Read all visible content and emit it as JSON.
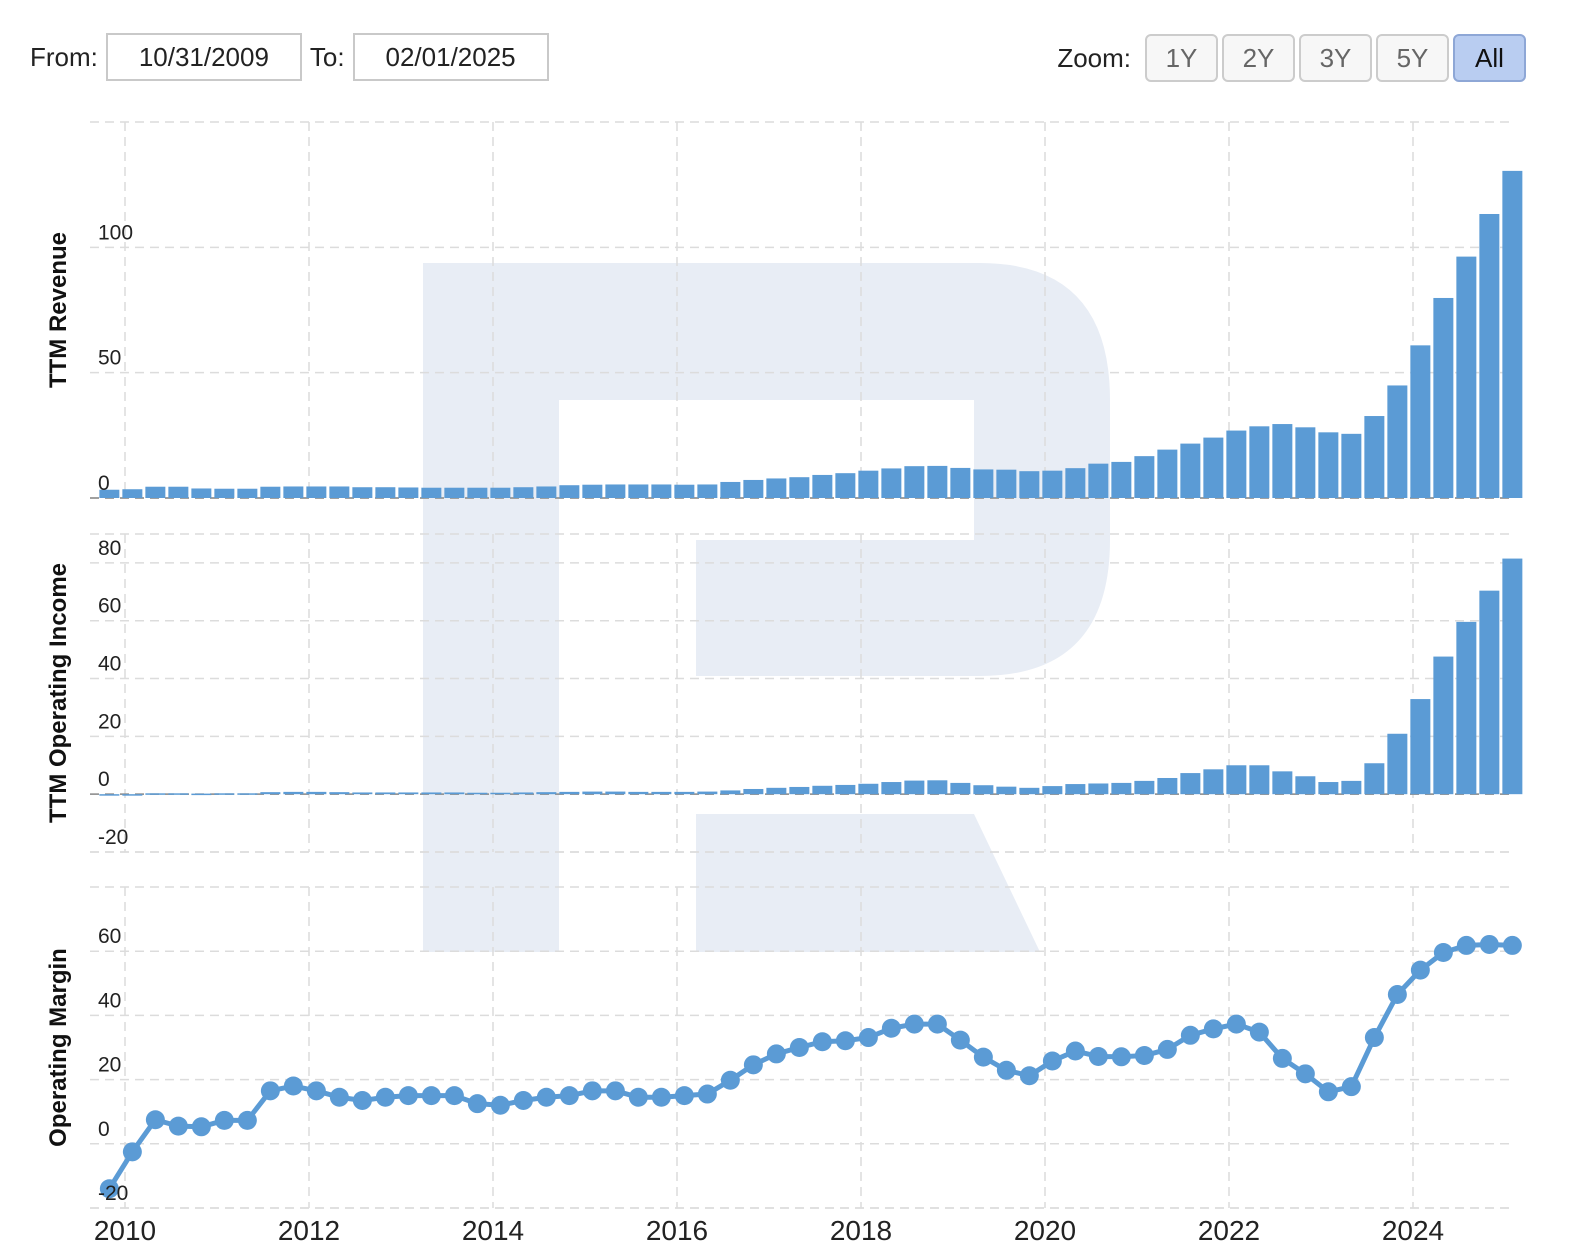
{
  "range": {
    "from_label": "From:",
    "from_value": "10/31/2009",
    "to_label": "To:",
    "to_value": "02/01/2025"
  },
  "zoom": {
    "label": "Zoom:",
    "buttons": [
      "1Y",
      "2Y",
      "3Y",
      "5Y",
      "All"
    ],
    "active": "All"
  },
  "colors": {
    "series": "#5b9bd5",
    "watermark": "#e8edf5",
    "grid": "#dcdcdc"
  },
  "chart_data": [
    {
      "type": "bar",
      "ylabel": "TTM Revenue",
      "ylim": [
        0,
        150
      ],
      "yticks": [
        0,
        50,
        100
      ],
      "x": [
        2009.83,
        2010.08,
        2010.33,
        2010.58,
        2010.83,
        2011.08,
        2011.33,
        2011.58,
        2011.83,
        2012.08,
        2012.33,
        2012.58,
        2012.83,
        2013.08,
        2013.33,
        2013.58,
        2013.83,
        2014.08,
        2014.33,
        2014.58,
        2014.83,
        2015.08,
        2015.33,
        2015.58,
        2015.83,
        2016.08,
        2016.33,
        2016.58,
        2016.83,
        2017.08,
        2017.33,
        2017.58,
        2017.83,
        2018.08,
        2018.33,
        2018.58,
        2018.83,
        2019.08,
        2019.33,
        2019.58,
        2019.83,
        2020.08,
        2020.33,
        2020.58,
        2020.83,
        2021.08,
        2021.33,
        2021.58,
        2021.83,
        2022.08,
        2022.33,
        2022.58,
        2022.83,
        2023.08,
        2023.33,
        2023.58,
        2023.83,
        2024.08,
        2024.33,
        2024.58,
        2024.83,
        2025.08
      ],
      "values": [
        3.3,
        3.5,
        4.5,
        4.5,
        3.8,
        3.7,
        3.7,
        4.5,
        4.6,
        4.6,
        4.6,
        4.3,
        4.3,
        4.2,
        4.1,
        4.1,
        4.1,
        4.1,
        4.3,
        4.6,
        5.1,
        5.3,
        5.4,
        5.4,
        5.4,
        5.3,
        5.4,
        6.4,
        7.2,
        7.8,
        8.3,
        9.2,
        9.9,
        10.9,
        11.8,
        12.7,
        12.8,
        12.0,
        11.4,
        11.3,
        10.7,
        10.9,
        11.9,
        13.7,
        14.4,
        16.7,
        19.3,
        21.7,
        24.1,
        26.9,
        28.6,
        29.5,
        28.2,
        26.2,
        25.6,
        32.7,
        44.9,
        60.9,
        79.8,
        96.3,
        113.3,
        130.5
      ]
    },
    {
      "type": "bar",
      "ylabel": "TTM Operating Income",
      "ylim": [
        -20,
        90
      ],
      "yticks": [
        -20,
        0,
        20,
        40,
        60,
        80
      ],
      "x": [
        2009.83,
        2010.08,
        2010.33,
        2010.58,
        2010.83,
        2011.08,
        2011.33,
        2011.58,
        2011.83,
        2012.08,
        2012.33,
        2012.58,
        2012.83,
        2013.08,
        2013.33,
        2013.58,
        2013.83,
        2014.08,
        2014.33,
        2014.58,
        2014.83,
        2015.08,
        2015.33,
        2015.58,
        2015.83,
        2016.08,
        2016.33,
        2016.58,
        2016.83,
        2017.08,
        2017.33,
        2017.58,
        2017.83,
        2018.08,
        2018.33,
        2018.58,
        2018.83,
        2019.08,
        2019.33,
        2019.58,
        2019.83,
        2020.08,
        2020.33,
        2020.58,
        2020.83,
        2021.08,
        2021.33,
        2021.58,
        2021.83,
        2022.08,
        2022.33,
        2022.58,
        2022.83,
        2023.08,
        2023.33,
        2023.58,
        2023.83,
        2024.08,
        2024.33,
        2024.58,
        2024.83,
        2025.08
      ],
      "values": [
        -0.5,
        -0.1,
        0.3,
        0.3,
        0.2,
        0.3,
        0.3,
        0.7,
        0.8,
        0.8,
        0.7,
        0.6,
        0.6,
        0.6,
        0.6,
        0.6,
        0.5,
        0.5,
        0.6,
        0.7,
        0.8,
        0.9,
        0.9,
        0.8,
        0.8,
        0.8,
        0.9,
        1.3,
        1.8,
        2.2,
        2.5,
        2.9,
        3.2,
        3.6,
        4.2,
        4.7,
        4.8,
        3.9,
        3.1,
        2.6,
        2.2,
        2.8,
        3.5,
        3.7,
        3.9,
        4.6,
        5.6,
        7.3,
        8.6,
        10.0,
        10.0,
        7.9,
        6.2,
        4.2,
        4.6,
        10.7,
        20.9,
        32.9,
        47.6,
        59.6,
        70.4,
        81.5
      ]
    },
    {
      "type": "line",
      "ylabel": "Operating Margin",
      "ylim": [
        -20,
        80
      ],
      "yticks": [
        -20,
        0,
        20,
        40,
        60
      ],
      "xticks": [
        2010,
        2012,
        2014,
        2016,
        2018,
        2020,
        2022,
        2024
      ],
      "x": [
        2009.83,
        2010.08,
        2010.33,
        2010.58,
        2010.83,
        2011.08,
        2011.33,
        2011.58,
        2011.83,
        2012.08,
        2012.33,
        2012.58,
        2012.83,
        2013.08,
        2013.33,
        2013.58,
        2013.83,
        2014.08,
        2014.33,
        2014.58,
        2014.83,
        2015.08,
        2015.33,
        2015.58,
        2015.83,
        2016.08,
        2016.33,
        2016.58,
        2016.83,
        2017.08,
        2017.33,
        2017.58,
        2017.83,
        2018.08,
        2018.33,
        2018.58,
        2018.83,
        2019.08,
        2019.33,
        2019.58,
        2019.83,
        2020.08,
        2020.33,
        2020.58,
        2020.83,
        2021.08,
        2021.33,
        2021.58,
        2021.83,
        2022.08,
        2022.33,
        2022.58,
        2022.83,
        2023.08,
        2023.33,
        2023.58,
        2023.83,
        2024.08,
        2024.33,
        2024.58,
        2024.83,
        2025.08
      ],
      "values": [
        -14,
        -2.5,
        7.5,
        5.5,
        5.3,
        7.3,
        7.3,
        16.5,
        18,
        16.5,
        14.5,
        13.5,
        14.5,
        15,
        15,
        15,
        12.5,
        12,
        13.5,
        14.5,
        15,
        16.5,
        16.5,
        14.5,
        14.5,
        15,
        15.5,
        19.8,
        24.6,
        28,
        30,
        31.8,
        32.1,
        33.1,
        36,
        37.3,
        37.3,
        32.3,
        27,
        22.9,
        21.2,
        25.8,
        28.9,
        27.2,
        27.1,
        27.5,
        29.4,
        33.8,
        35.8,
        37.3,
        34.8,
        26.6,
        21.8,
        16.2,
        17.8,
        33.1,
        46.5,
        54.1,
        59.6,
        61.8,
        62.1,
        61.8
      ]
    }
  ]
}
